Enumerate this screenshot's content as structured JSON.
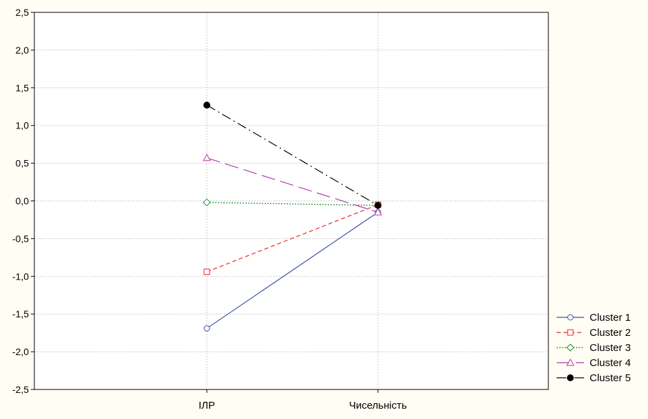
{
  "chart_data": {
    "type": "line",
    "categories": [
      "ІЛР",
      "Чисельність"
    ],
    "ylim": [
      -2.5,
      2.5
    ],
    "yticks": [
      "2,5",
      "2,0",
      "1,5",
      "1,0",
      "0,5",
      "0,0",
      "-0,5",
      "-1,0",
      "-1,5",
      "-2,0",
      "-2,5"
    ],
    "ytick_values": [
      2.5,
      2.0,
      1.5,
      1.0,
      0.5,
      0.0,
      -0.5,
      -1.0,
      -1.5,
      -2.0,
      -2.5
    ],
    "grid": true,
    "legend_position": "bottom-right, outside plot",
    "series": [
      {
        "name": "Cluster  1",
        "values": [
          -1.69,
          -0.15
        ],
        "color": "#3a4fa8",
        "marker": "circle-open",
        "dash": "solid"
      },
      {
        "name": "Cluster  2",
        "values": [
          -0.94,
          -0.05
        ],
        "color": "#e8252a",
        "marker": "square-open",
        "dash": "short-dash"
      },
      {
        "name": "Cluster  3",
        "values": [
          -0.02,
          -0.06
        ],
        "color": "#1a8a2a",
        "marker": "diamond-open",
        "dash": "dotted"
      },
      {
        "name": "Cluster  4",
        "values": [
          0.57,
          -0.15
        ],
        "color": "#b03aa8",
        "marker": "triangle-open",
        "dash": "long-dash"
      },
      {
        "name": "Cluster  5",
        "values": [
          1.27,
          -0.06
        ],
        "color": "#000000",
        "marker": "circle-filled",
        "dash": "dash-dot"
      }
    ]
  }
}
